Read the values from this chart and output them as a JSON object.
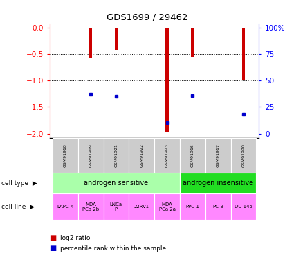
{
  "title": "GDS1699 / 29462",
  "samples": [
    "GSM91918",
    "GSM91919",
    "GSM91921",
    "GSM91922",
    "GSM91923",
    "GSM91916",
    "GSM91917",
    "GSM91920"
  ],
  "log2_ratio": [
    0.0,
    -0.57,
    -0.42,
    -0.02,
    -1.97,
    -0.55,
    -0.02,
    -1.0
  ],
  "percentile_rank": [
    null,
    37,
    35,
    null,
    10,
    36,
    null,
    18
  ],
  "ylim_left": [
    -2.08,
    0.08
  ],
  "left_ticks": [
    0,
    -0.5,
    -1,
    -1.5,
    -2
  ],
  "right_ticks": [
    0,
    25,
    50,
    75,
    100
  ],
  "cell_type_groups": [
    {
      "label": "androgen sensitive",
      "start": 0,
      "end": 5,
      "color": "#AAFFAA"
    },
    {
      "label": "androgen insensitive",
      "start": 5,
      "end": 8,
      "color": "#22DD22"
    }
  ],
  "cell_lines": [
    "LAPC-4",
    "MDA\nPCa 2b",
    "LNCa\nP",
    "22Rv1",
    "MDA\nPCa 2a",
    "PPC-1",
    "PC-3",
    "DU 145"
  ],
  "cell_line_color": "#FF88FF",
  "sample_bg_color": "#CCCCCC",
  "bar_color": "#CC0000",
  "dot_color": "#0000CC",
  "bar_width": 0.12,
  "legend_red": "log2 ratio",
  "legend_blue": "percentile rank within the sample"
}
